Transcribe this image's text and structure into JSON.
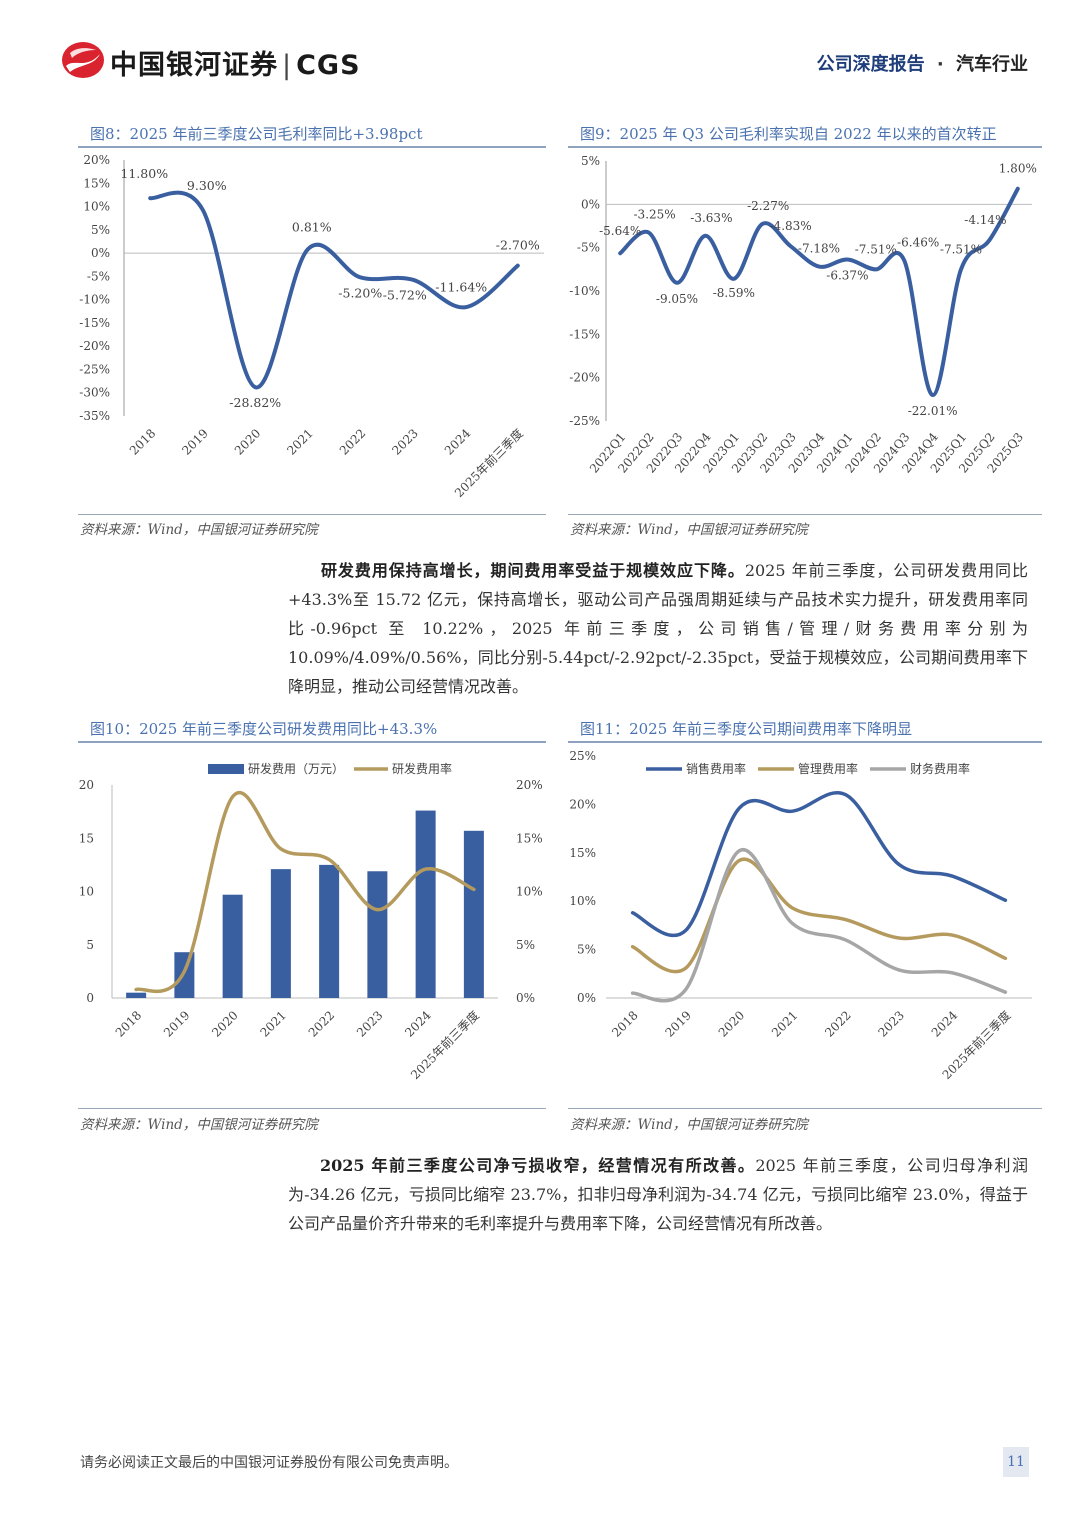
{
  "header": {
    "logo_text": "中国银河证券",
    "logo_sep": "|",
    "logo_cgs": "CGS",
    "report_type": "公司深度报告",
    "dot": "·",
    "industry": "汽车行业",
    "colors": {
      "logo_red": "#d9232e",
      "logo_blue": "#1f3d7a"
    }
  },
  "fig8": {
    "title": "图8：2025 年前三季度公司毛利率同比+3.98pct",
    "source": "资料来源：Wind，中国银河证券研究院"
  },
  "fig9": {
    "title": "图9：2025 年 Q3 公司毛利率实现自 2022 年以来的首次转正",
    "source": "资料来源：Wind，中国银河证券研究院"
  },
  "para1": {
    "bold": "研发费用保持高增长，期间费用率受益于规模效应下降。",
    "text": "2025 年前三季度，公司研发费用同比+43.3%至 15.72 亿元，保持高增长，驱动公司产品强周期延续与产品技术实力提升，研发费用率同比-0.96pct 至 10.22%，2025 年前三季度，公司销售/管理/财务费用率分别为 10.09%/4.09%/0.56%，同比分别-5.44pct/-2.92pct/-2.35pct，受益于规模效应，公司期间费用率下降明显，推动公司经营情况改善。"
  },
  "fig10": {
    "title": "图10：2025 年前三季度公司研发费用同比+43.3%",
    "source": "资料来源：Wind，中国银河证券研究院"
  },
  "fig11": {
    "title": "图11：2025 年前三季度公司期间费用率下降明显",
    "source": "资料来源：Wind，中国银河证券研究院"
  },
  "para2": {
    "bold": "2025 年前三季度公司净亏损收窄，经营情况有所改善。",
    "text": "2025 年前三季度，公司归母净利润为-34.26 亿元，亏损同比缩窄 23.7%，扣非归母净利润为-34.74 亿元，亏损同比缩窄 23.0%，得益于公司产品量价齐升带来的毛利率提升与费用率下降，公司经营情况有所改善。"
  },
  "footer": {
    "disclaimer": "请务必阅读正文最后的中国银河证券股份有限公司免责声明。",
    "page": "11"
  },
  "chart_data": [
    {
      "id": "fig8",
      "type": "line",
      "categories": [
        "2018",
        "2019",
        "2020",
        "2021",
        "2022",
        "2023",
        "2024",
        "2025年前三季度"
      ],
      "values": [
        11.8,
        9.3,
        -28.82,
        0.81,
        -5.2,
        -5.72,
        -11.64,
        -2.7
      ],
      "labels": [
        "11.80%",
        "9.30%",
        "-28.82%",
        "0.81%",
        "-5.20%",
        "-5.72%",
        "-11.64%",
        "-2.70%"
      ],
      "ylim": [
        -35,
        20
      ],
      "yticks": [
        "20%",
        "15%",
        "10%",
        "5%",
        "0%",
        "-5%",
        "-10%",
        "-15%",
        "-20%",
        "-25%",
        "-30%",
        "-35%"
      ],
      "color": "#3a5fa0"
    },
    {
      "id": "fig9",
      "type": "line",
      "categories": [
        "2022Q1",
        "2022Q2",
        "2022Q3",
        "2022Q4",
        "2023Q1",
        "2023Q2",
        "2023Q3",
        "2023Q4",
        "2024Q1",
        "2024Q2",
        "2024Q3",
        "2024Q4",
        "2025Q1",
        "2025Q2",
        "2025Q3"
      ],
      "values": [
        -5.64,
        -3.25,
        -9.05,
        -3.63,
        -8.59,
        -2.27,
        -4.83,
        -7.18,
        -6.37,
        -7.51,
        -6.46,
        -22.01,
        -7.51,
        -4.14,
        1.8
      ],
      "labels": [
        "-5.64%",
        "-3.25%",
        "-9.05%",
        "-3.63%",
        "-8.59%",
        "-2.27%",
        "-4.83%",
        "-7.18%",
        "-6.37%",
        "-7.51%",
        "-6.46%",
        "-22.01%",
        "-7.51%",
        "-4.14%",
        "1.80%"
      ],
      "ylim": [
        -25,
        5
      ],
      "yticks": [
        "5%",
        "0%",
        "-5%",
        "-10%",
        "-15%",
        "-20%",
        "-25%"
      ],
      "color": "#3a5fa0"
    },
    {
      "id": "fig10",
      "type": "bar+line",
      "categories": [
        "2018",
        "2019",
        "2020",
        "2021",
        "2022",
        "2023",
        "2024",
        "2025年前三季度"
      ],
      "series": [
        {
          "name": "研发费用（万元）",
          "type": "bar",
          "axis": "left",
          "values": [
            0.5,
            4.3,
            9.7,
            12.1,
            12.5,
            11.9,
            17.6,
            15.7
          ],
          "color": "#3a5fa0"
        },
        {
          "name": "研发费用率",
          "type": "line",
          "axis": "right",
          "values": [
            0.8,
            2.5,
            18.9,
            14.0,
            13.0,
            8.3,
            12.1,
            10.2
          ],
          "color": "#b59a5e"
        }
      ],
      "ylim_left": [
        0,
        20
      ],
      "yticks_left": [
        "20",
        "15",
        "10",
        "5",
        "0"
      ],
      "ylim_right": [
        0,
        20
      ],
      "yticks_right": [
        "20%",
        "15%",
        "10%",
        "5%",
        "0%"
      ]
    },
    {
      "id": "fig11",
      "type": "line",
      "categories": [
        "2018",
        "2019",
        "2020",
        "2021",
        "2022",
        "2023",
        "2024",
        "2025年前三季度"
      ],
      "series": [
        {
          "name": "销售费用率",
          "values": [
            8.8,
            7.0,
            19.6,
            19.3,
            21.0,
            13.8,
            12.6,
            10.1
          ],
          "color": "#3a5fa0"
        },
        {
          "name": "管理费用率",
          "values": [
            5.3,
            3.1,
            14.2,
            9.3,
            8.1,
            6.2,
            6.5,
            4.1
          ],
          "color": "#b59a5e"
        },
        {
          "name": "财务费用率",
          "values": [
            0.5,
            0.9,
            15.2,
            7.7,
            6.0,
            2.9,
            2.6,
            0.6
          ],
          "color": "#a6a6a6"
        }
      ],
      "ylim": [
        0,
        25
      ],
      "yticks": [
        "25%",
        "20%",
        "15%",
        "10%",
        "5%",
        "0%"
      ]
    }
  ]
}
